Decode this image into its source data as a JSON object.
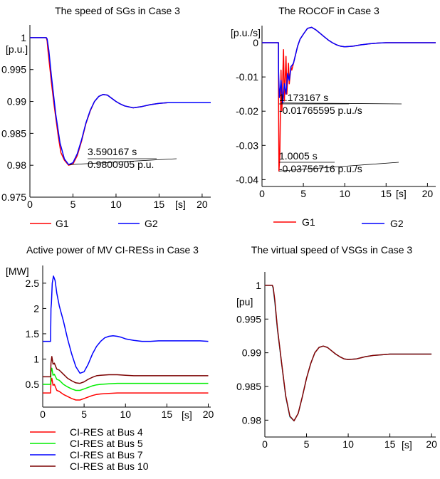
{
  "chart_data": [
    {
      "type": "line",
      "title": "The speed of SGs in Case 3",
      "unit_label": "[p.u.]",
      "xunit_label": "[s]",
      "xlim": [
        0,
        21
      ],
      "ylim": [
        0.975,
        1.002
      ],
      "xticks": [
        0,
        5,
        10,
        15,
        20
      ],
      "yticks": [
        0.975,
        0.98,
        0.985,
        0.99,
        0.995,
        1
      ],
      "ytick_labels": [
        "0.975",
        "0.98",
        "0.985",
        "0.99",
        "0.995",
        "1"
      ],
      "grid": false,
      "legend": "bottom",
      "series": [
        {
          "name": "G1",
          "color": "#ff0000",
          "x": [
            0,
            1.9,
            2.0,
            2.1,
            2.3,
            2.5,
            2.8,
            3.0,
            3.3,
            3.6,
            4.0,
            4.5,
            5,
            5.5,
            6,
            6.5,
            7,
            7.5,
            8,
            8.5,
            9,
            9.5,
            10,
            10.5,
            11,
            12,
            13,
            14,
            15,
            16,
            17,
            18,
            19,
            20,
            21
          ],
          "y": [
            1,
            1,
            0.9995,
            0.998,
            0.9955,
            0.993,
            0.9895,
            0.9875,
            0.9845,
            0.982,
            0.9808,
            0.98,
            0.9802,
            0.9815,
            0.9838,
            0.9865,
            0.9885,
            0.99,
            0.9908,
            0.9911,
            0.991,
            0.9905,
            0.99,
            0.9896,
            0.9893,
            0.989,
            0.9892,
            0.9895,
            0.9897,
            0.9898,
            0.9898,
            0.9898,
            0.9898,
            0.9898,
            0.9898
          ]
        },
        {
          "name": "G2",
          "color": "#0000ff",
          "x": [
            0,
            1.9,
            2.0,
            2.2,
            2.5,
            3.0,
            3.5,
            4.0,
            4.5,
            5,
            5.5,
            6,
            6.5,
            7,
            7.5,
            8,
            8.5,
            9,
            9.5,
            10,
            10.5,
            11,
            12,
            13,
            14,
            15,
            16,
            17,
            18,
            19,
            20,
            21
          ],
          "y": [
            1,
            1,
            0.9998,
            0.998,
            0.994,
            0.988,
            0.9835,
            0.981,
            0.9801,
            0.9804,
            0.9818,
            0.984,
            0.9866,
            0.9886,
            0.99,
            0.9908,
            0.9911,
            0.991,
            0.9905,
            0.99,
            0.9896,
            0.9893,
            0.989,
            0.9892,
            0.9895,
            0.9897,
            0.9898,
            0.9898,
            0.9898,
            0.9898,
            0.9898,
            0.9898
          ]
        }
      ],
      "annotations": [
        {
          "x": 4.6,
          "y": 0.9801,
          "lines": [
            "3.590167 s",
            "0.9800905 p.u."
          ]
        }
      ]
    },
    {
      "type": "line",
      "title": "The ROCOF in Case 3",
      "unit_label": "[p.u./s]",
      "xunit_label": "[s]",
      "xlim": [
        0,
        21
      ],
      "ylim": [
        -0.042,
        0.005
      ],
      "xticks": [
        0,
        5,
        10,
        15,
        20
      ],
      "yticks": [
        -0.04,
        -0.03,
        -0.02,
        -0.01,
        0
      ],
      "ytick_labels": [
        "-0.04",
        "-0.03",
        "-0.02",
        "-0.01",
        "0"
      ],
      "grid": false,
      "legend": "bottom",
      "series": [
        {
          "name": "G1",
          "color": "#ff0000",
          "x": [
            0,
            1.99,
            2.0,
            2.05,
            2.15,
            2.3,
            2.4,
            2.6,
            2.7,
            2.9,
            3.0,
            3.2,
            3.3,
            3.5,
            3.6,
            3.8,
            4.0,
            4.3,
            4.6,
            5,
            5.5,
            6,
            6.5,
            7,
            7.5,
            8,
            8.5,
            9,
            9.5,
            10,
            11,
            12,
            13,
            14,
            15,
            16,
            17,
            18,
            19,
            20,
            21
          ],
          "y": [
            0,
            0,
            -0.015,
            -0.0375,
            -0.033,
            -0.008,
            -0.02,
            -0.002,
            -0.017,
            -0.004,
            -0.015,
            -0.006,
            -0.012,
            -0.007,
            -0.008,
            -0.006,
            -0.004,
            -0.001,
            0.001,
            0.0025,
            0.0042,
            0.0045,
            0.0038,
            0.0028,
            0.0018,
            0.0008,
            0,
            -0.0006,
            -0.001,
            -0.0012,
            -0.001,
            -0.0006,
            -0.0003,
            -0.0001,
            0,
            0,
            0,
            0,
            0,
            0,
            0
          ]
        },
        {
          "name": "G2",
          "color": "#0000ff",
          "x": [
            0,
            1.99,
            2.0,
            2.1,
            2.3,
            2.5,
            2.7,
            2.9,
            3.1,
            3.3,
            3.5,
            3.8,
            4.0,
            4.3,
            4.6,
            5,
            5.5,
            6,
            6.5,
            7,
            7.5,
            8,
            8.5,
            9,
            9.5,
            10,
            11,
            12,
            13,
            14,
            15,
            16,
            17,
            18,
            19,
            20,
            21
          ],
          "y": [
            0,
            0,
            -0.008,
            -0.016,
            -0.011,
            -0.0176,
            -0.012,
            -0.015,
            -0.009,
            -0.011,
            -0.007,
            -0.006,
            -0.004,
            -0.001,
            0.001,
            0.0025,
            0.0042,
            0.0045,
            0.0038,
            0.0028,
            0.0018,
            0.0008,
            0,
            -0.0006,
            -0.001,
            -0.0012,
            -0.001,
            -0.0006,
            -0.0003,
            -0.0001,
            0,
            0,
            0,
            0,
            0,
            0,
            0
          ]
        }
      ],
      "annotations": [
        {
          "x": 2.3,
          "y": -0.0176,
          "lines": [
            "1.173167 s",
            "-0.01765595 p.u./s"
          ]
        },
        {
          "x": 2.05,
          "y": -0.0375,
          "lines": [
            "1.0005 s",
            "-0.03756716 p.u./s"
          ]
        }
      ]
    },
    {
      "type": "line",
      "title": "Active power of MV CI-RESs in Case 3",
      "unit_label": "[MW]",
      "xunit_label": "[s]",
      "xlim": [
        0,
        20.3
      ],
      "ylim": [
        0.05,
        2.85
      ],
      "xticks": [
        0,
        5,
        10,
        15,
        20
      ],
      "yticks": [
        0.5,
        1,
        1.5,
        2,
        2.5
      ],
      "ytick_labels": [
        "0.5",
        "1",
        "1.5",
        "2",
        "2.5"
      ],
      "grid": false,
      "legend": "bottom",
      "series": [
        {
          "name": "CI-RES at Bus 4",
          "color": "#ff0000",
          "x": [
            0,
            0.95,
            1.0,
            1.1,
            1.25,
            1.4,
            1.7,
            2.0,
            2.5,
            3.0,
            3.5,
            4.0,
            4.5,
            5,
            5.5,
            6,
            6.5,
            7,
            8,
            9,
            10,
            11,
            12,
            14,
            16,
            18,
            20
          ],
          "y": [
            0.33,
            0.33,
            0.55,
            0.62,
            0.48,
            0.5,
            0.38,
            0.36,
            0.3,
            0.26,
            0.22,
            0.19,
            0.19,
            0.22,
            0.25,
            0.28,
            0.3,
            0.31,
            0.32,
            0.33,
            0.33,
            0.33,
            0.33,
            0.33,
            0.33,
            0.33,
            0.33
          ]
        },
        {
          "name": "CI-RES at Bus 5",
          "color": "#00ee00",
          "x": [
            0,
            0.95,
            1.0,
            1.1,
            1.25,
            1.4,
            1.7,
            2.0,
            2.5,
            3.0,
            3.5,
            4.0,
            4.5,
            5,
            5.5,
            6,
            6.5,
            7,
            8,
            9,
            10,
            11,
            12,
            14,
            16,
            18,
            20
          ],
          "y": [
            0.5,
            0.5,
            0.75,
            0.82,
            0.68,
            0.7,
            0.6,
            0.58,
            0.5,
            0.45,
            0.41,
            0.38,
            0.38,
            0.41,
            0.44,
            0.47,
            0.49,
            0.5,
            0.51,
            0.52,
            0.52,
            0.52,
            0.52,
            0.52,
            0.52,
            0.52,
            0.52
          ]
        },
        {
          "name": "CI-RES at Bus 7",
          "color": "#0000ff",
          "x": [
            0,
            0.95,
            1.0,
            1.05,
            1.15,
            1.3,
            1.5,
            1.7,
            2.0,
            2.5,
            3.0,
            3.5,
            4.0,
            4.5,
            5,
            5.5,
            6,
            6.5,
            7,
            7.5,
            8,
            8.5,
            9,
            9.5,
            10,
            11,
            12,
            13,
            14,
            15,
            16,
            17,
            18,
            19,
            20
          ],
          "y": [
            1.35,
            1.35,
            2.0,
            2.1,
            2.5,
            2.64,
            2.55,
            2.3,
            2.05,
            1.75,
            1.4,
            1.1,
            0.85,
            0.72,
            0.75,
            0.9,
            1.1,
            1.25,
            1.35,
            1.42,
            1.45,
            1.46,
            1.45,
            1.43,
            1.4,
            1.37,
            1.35,
            1.35,
            1.36,
            1.36,
            1.36,
            1.36,
            1.36,
            1.36,
            1.35
          ]
        },
        {
          "name": "CI-RES at Bus 10",
          "color": "#7b0000",
          "x": [
            0,
            0.95,
            1.0,
            1.1,
            1.25,
            1.4,
            1.7,
            2.0,
            2.5,
            3.0,
            3.5,
            4.0,
            4.5,
            5,
            5.5,
            6,
            6.5,
            7,
            8,
            9,
            10,
            11,
            12,
            14,
            16,
            18,
            20
          ],
          "y": [
            0.65,
            0.65,
            0.92,
            1.05,
            0.9,
            0.92,
            0.8,
            0.78,
            0.7,
            0.62,
            0.57,
            0.53,
            0.52,
            0.55,
            0.6,
            0.64,
            0.67,
            0.68,
            0.69,
            0.69,
            0.68,
            0.67,
            0.67,
            0.67,
            0.67,
            0.67,
            0.67
          ]
        }
      ]
    },
    {
      "type": "line",
      "title": "The virtual speed of VSGs in Case 3",
      "unit_label": "[pu]",
      "xunit_label": "[s]",
      "xlim": [
        0,
        20.5
      ],
      "ylim": [
        0.9775,
        1.002
      ],
      "xticks": [
        0,
        5,
        10,
        15,
        20
      ],
      "yticks": [
        0.98,
        0.985,
        0.99,
        0.995,
        1
      ],
      "ytick_labels": [
        "0.98",
        "0.985",
        "0.99",
        "0.995",
        "1"
      ],
      "grid": false,
      "legend": "none",
      "series": [
        {
          "name": "",
          "color": "#00bcd4",
          "x": [
            0,
            0.9,
            1.0,
            1.2,
            1.5,
            2.0,
            2.5,
            3.0,
            3.5,
            4.0,
            4.5,
            5,
            5.5,
            6,
            6.5,
            7,
            7.5,
            8,
            8.5,
            9,
            9.5,
            10,
            11,
            12,
            13,
            14,
            15,
            16,
            17,
            18,
            19,
            20
          ],
          "y": [
            1,
            1,
            0.9995,
            0.9975,
            0.9935,
            0.9885,
            0.9835,
            0.9805,
            0.9799,
            0.981,
            0.9835,
            0.9862,
            0.9884,
            0.99,
            0.9908,
            0.991,
            0.9908,
            0.9903,
            0.9898,
            0.9894,
            0.9891,
            0.989,
            0.9891,
            0.9894,
            0.9896,
            0.9897,
            0.9898,
            0.9898,
            0.9898,
            0.9898,
            0.9898,
            0.9898
          ]
        },
        {
          "name": "",
          "color": "#8b0000",
          "x": [
            0,
            0.9,
            1.0,
            1.2,
            1.5,
            2.0,
            2.5,
            3.0,
            3.5,
            4.0,
            4.5,
            5,
            5.5,
            6,
            6.5,
            7,
            7.5,
            8,
            8.5,
            9,
            9.5,
            10,
            11,
            12,
            13,
            14,
            15,
            16,
            17,
            18,
            19,
            20
          ],
          "y": [
            1,
            1,
            0.9997,
            0.9978,
            0.9937,
            0.9886,
            0.9836,
            0.9806,
            0.9799,
            0.981,
            0.9835,
            0.9862,
            0.9884,
            0.99,
            0.9908,
            0.991,
            0.9908,
            0.9903,
            0.9898,
            0.9894,
            0.9891,
            0.989,
            0.9891,
            0.9894,
            0.9896,
            0.9897,
            0.9898,
            0.9898,
            0.9898,
            0.9898,
            0.9898,
            0.9898
          ]
        }
      ]
    }
  ]
}
